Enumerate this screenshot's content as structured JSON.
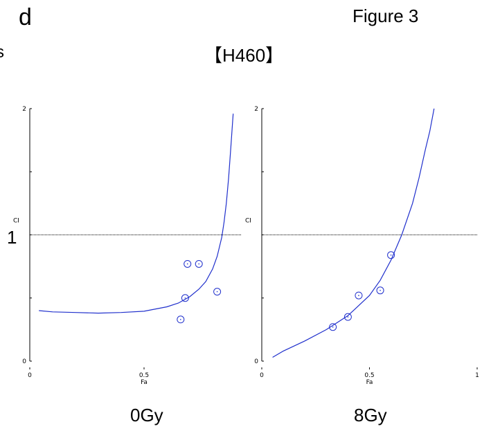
{
  "panel_letter": "d",
  "figure_label": "Figure 3",
  "cell_line_label": "【H460】",
  "edge_fragment": "s",
  "dose_labels": [
    "0Gy",
    "8Gy"
  ],
  "reference_line_label": "1",
  "colors": {
    "curve": "#1f2fcc",
    "point": "#1f2fcc",
    "axis": "#000000",
    "reference": "#000000"
  },
  "chart_data": [
    {
      "type": "scatter",
      "title": "",
      "xlabel": "Fa",
      "ylabel": "CI",
      "xlim": [
        0,
        0.9
      ],
      "ylim": [
        0,
        2
      ],
      "x_ticks": [
        0,
        0.5
      ],
      "x_tick_labels": [
        "0",
        "0.5"
      ],
      "y_ticks": [
        0,
        2
      ],
      "y_tick_labels": [
        "0",
        "2"
      ],
      "reference_line_y": 1,
      "series": [
        {
          "kind": "points",
          "x": [
            0.66,
            0.68,
            0.69,
            0.74,
            0.82
          ],
          "y": [
            0.33,
            0.5,
            0.77,
            0.77,
            0.55
          ]
        },
        {
          "kind": "curve",
          "x": [
            0.04,
            0.1,
            0.2,
            0.3,
            0.4,
            0.5,
            0.6,
            0.65,
            0.7,
            0.74,
            0.77,
            0.8,
            0.82,
            0.84,
            0.85,
            0.86,
            0.87,
            0.88,
            0.89
          ],
          "y": [
            0.4,
            0.39,
            0.385,
            0.38,
            0.385,
            0.395,
            0.43,
            0.46,
            0.51,
            0.57,
            0.63,
            0.73,
            0.83,
            0.98,
            1.1,
            1.25,
            1.45,
            1.7,
            1.96
          ]
        }
      ]
    },
    {
      "type": "scatter",
      "title": "",
      "xlabel": "Fa",
      "ylabel": "CI",
      "xlim": [
        0,
        1
      ],
      "ylim": [
        0,
        2
      ],
      "x_ticks": [
        0,
        0.5,
        1
      ],
      "x_tick_labels": [
        "0",
        "0.5",
        "1"
      ],
      "y_ticks": [
        0,
        2
      ],
      "y_tick_labels": [
        "0",
        "2"
      ],
      "reference_line_y": 1,
      "series": [
        {
          "kind": "points",
          "x": [
            0.33,
            0.4,
            0.45,
            0.55,
            0.6
          ],
          "y": [
            0.27,
            0.35,
            0.52,
            0.56,
            0.84
          ]
        },
        {
          "kind": "curve",
          "x": [
            0.05,
            0.1,
            0.2,
            0.3,
            0.4,
            0.5,
            0.55,
            0.6,
            0.65,
            0.7,
            0.73,
            0.76,
            0.78,
            0.8
          ],
          "y": [
            0.03,
            0.08,
            0.16,
            0.25,
            0.36,
            0.52,
            0.64,
            0.8,
            1.0,
            1.25,
            1.45,
            1.68,
            1.82,
            2.0
          ]
        }
      ]
    }
  ]
}
